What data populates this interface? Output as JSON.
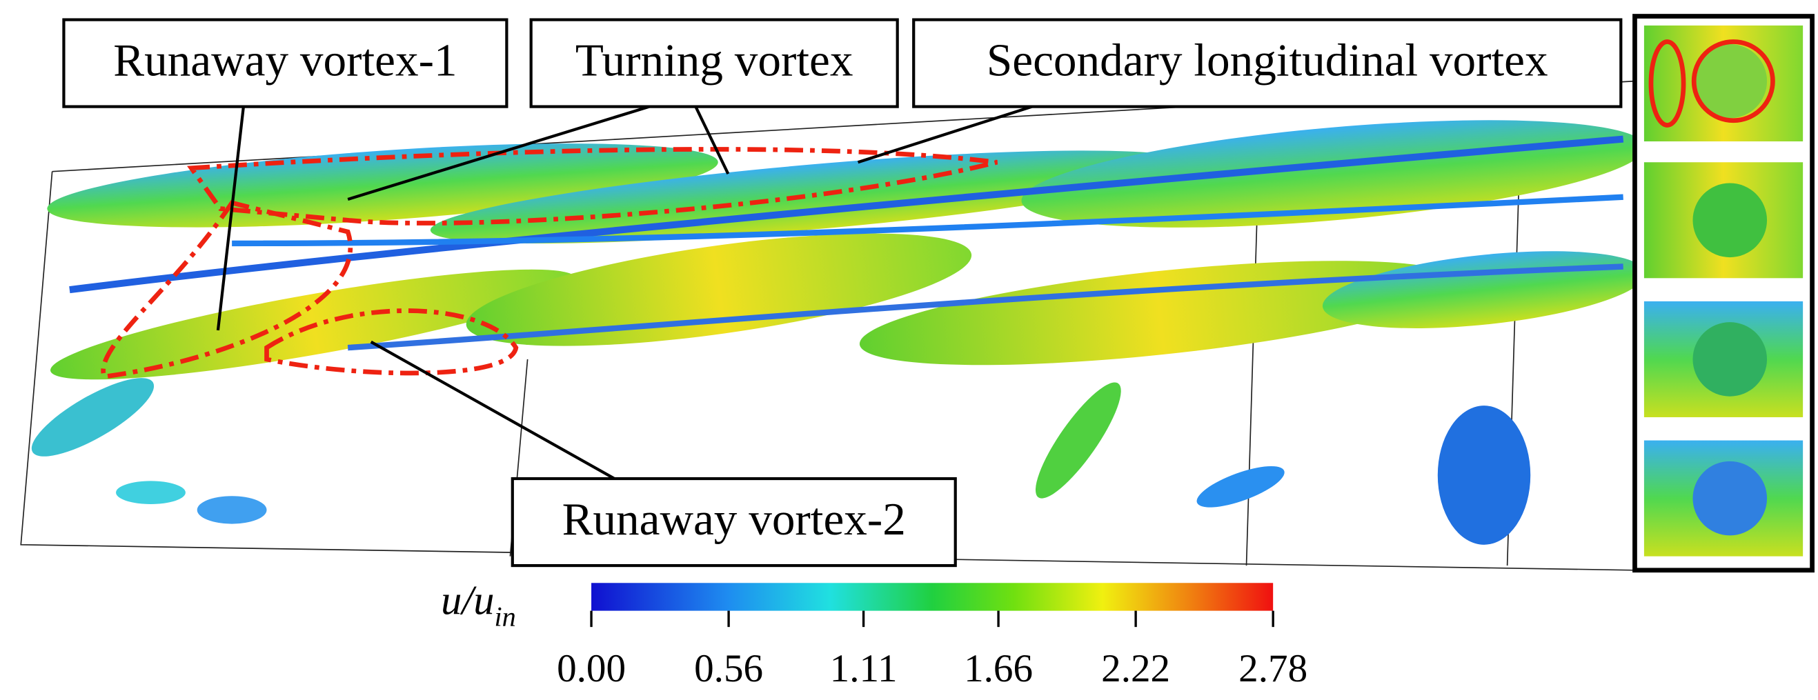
{
  "labels": {
    "runaway_vortex_1": "Runaway vortex-1",
    "turning_vortex": "Turning vortex",
    "secondary_vortex": "Secondary longitudinal vortex",
    "runaway_vortex_2": "Runaway vortex-2"
  },
  "colorbar": {
    "label_main": "u/u",
    "label_sub": "in",
    "lim": [
      0,
      2.78
    ],
    "ticks": [
      {
        "value": 0,
        "label": "0.00"
      },
      0.56,
      1.11,
      1.66,
      2.22,
      2.78
    ]
  }
}
